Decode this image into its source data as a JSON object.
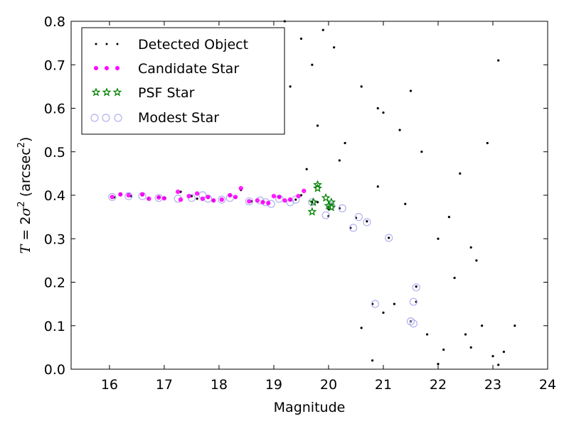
{
  "chart_data": {
    "type": "scatter",
    "title": "",
    "xlabel": "Magnitude",
    "ylabel": "T = 2σ² (arcsec²)",
    "ylabel_parts": {
      "var": "T",
      "eq": " = 2",
      "sigma": "σ",
      "sq1": "2",
      "unit_open": " (arcsec",
      "sq2": "2",
      "unit_close": ")"
    },
    "xlim": [
      15.3,
      24
    ],
    "ylim": [
      0.0,
      0.8
    ],
    "xticks": [
      16,
      17,
      18,
      19,
      20,
      21,
      22,
      23,
      24
    ],
    "yticks": [
      0.0,
      0.1,
      0.2,
      0.3,
      0.4,
      0.5,
      0.6,
      0.7,
      0.8
    ],
    "xtick_labels": [
      "16",
      "17",
      "18",
      "19",
      "20",
      "21",
      "22",
      "23",
      "24"
    ],
    "ytick_labels": [
      "0.0",
      "0.1",
      "0.2",
      "0.3",
      "0.4",
      "0.5",
      "0.6",
      "0.7",
      "0.8"
    ],
    "grid": false,
    "legend_position": "top-left",
    "colors": {
      "detected": "#000000",
      "candidate": "#ff00ff",
      "psf": "#008000",
      "modest": "#b0b0f0"
    },
    "series": [
      {
        "name": "Detected Object",
        "marker": "dot",
        "x": [
          16.1,
          16.2,
          16.4,
          16.6,
          16.7,
          16.9,
          17.0,
          17.3,
          17.5,
          17.6,
          17.8,
          17.9,
          18.2,
          18.3,
          18.4,
          18.6,
          18.8,
          18.9,
          19.1,
          19.3,
          19.4,
          19.5,
          19.7,
          19.8,
          20.0,
          20.0,
          20.2,
          20.4,
          20.5,
          20.7,
          20.8,
          21.1,
          21.5,
          21.6,
          21.6,
          20.8,
          21.0,
          20.6,
          22.0,
          22.3,
          22.5,
          22.6,
          22.8,
          23.0,
          23.1,
          23.2,
          23.4,
          21.2,
          21.8,
          22.1,
          19.2,
          19.5,
          19.7,
          19.9,
          20.1,
          20.6,
          20.9,
          21.3,
          21.7,
          22.4,
          22.9,
          23.1,
          19.3,
          19.8,
          20.2,
          20.9,
          21.4,
          22.0,
          22.7,
          19.6,
          20.3,
          21.0,
          21.5,
          22.2,
          22.6
        ],
        "y": [
          0.395,
          0.402,
          0.398,
          0.4,
          0.392,
          0.396,
          0.394,
          0.408,
          0.398,
          0.392,
          0.394,
          0.388,
          0.4,
          0.394,
          0.412,
          0.386,
          0.384,
          0.382,
          0.396,
          0.388,
          0.39,
          0.4,
          0.384,
          0.384,
          0.368,
          0.352,
          0.37,
          0.325,
          0.348,
          0.34,
          0.15,
          0.302,
          0.11,
          0.19,
          0.155,
          0.02,
          0.13,
          0.095,
          0.012,
          0.21,
          0.08,
          0.05,
          0.1,
          0.03,
          0.01,
          0.04,
          0.1,
          0.15,
          0.08,
          0.045,
          0.8,
          0.76,
          0.7,
          0.78,
          0.74,
          0.65,
          0.6,
          0.55,
          0.5,
          0.45,
          0.52,
          0.71,
          0.65,
          0.56,
          0.48,
          0.42,
          0.38,
          0.3,
          0.25,
          0.46,
          0.52,
          0.59,
          0.64,
          0.35,
          0.28
        ]
      },
      {
        "name": "Candidate Star",
        "marker": "circle-small",
        "x": [
          16.05,
          16.2,
          16.35,
          16.6,
          16.72,
          16.9,
          17.0,
          17.25,
          17.3,
          17.45,
          17.6,
          17.7,
          17.8,
          17.9,
          18.05,
          18.2,
          18.3,
          18.4,
          18.55,
          18.7,
          18.8,
          18.9,
          19.0,
          19.1,
          19.2,
          19.3,
          19.45,
          19.55
        ],
        "y": [
          0.396,
          0.402,
          0.4,
          0.402,
          0.392,
          0.395,
          0.393,
          0.408,
          0.39,
          0.398,
          0.404,
          0.392,
          0.396,
          0.388,
          0.39,
          0.4,
          0.396,
          0.416,
          0.386,
          0.388,
          0.384,
          0.382,
          0.398,
          0.396,
          0.388,
          0.39,
          0.398,
          0.41
        ]
      },
      {
        "name": "PSF Star",
        "marker": "star",
        "x": [
          19.72,
          19.8,
          19.8,
          19.95,
          20.0,
          20.05,
          20.05,
          19.7
        ],
        "y": [
          0.384,
          0.424,
          0.416,
          0.394,
          0.376,
          0.384,
          0.372,
          0.362
        ]
      },
      {
        "name": "Modest Star",
        "marker": "circle-large",
        "x": [
          16.05,
          16.35,
          16.6,
          16.9,
          17.25,
          17.5,
          17.7,
          17.8,
          18.05,
          18.2,
          18.55,
          18.75,
          18.85,
          18.95,
          19.1,
          19.3,
          19.4,
          19.7,
          19.95,
          20.05,
          20.25,
          20.45,
          20.55,
          20.7,
          20.85,
          21.1,
          21.5,
          21.55,
          21.6,
          21.55
        ],
        "y": [
          0.396,
          0.398,
          0.398,
          0.394,
          0.392,
          0.394,
          0.4,
          0.392,
          0.39,
          0.394,
          0.386,
          0.388,
          0.384,
          0.38,
          0.392,
          0.384,
          0.39,
          0.384,
          0.354,
          0.376,
          0.37,
          0.325,
          0.35,
          0.338,
          0.15,
          0.302,
          0.11,
          0.105,
          0.188,
          0.155
        ]
      }
    ]
  }
}
